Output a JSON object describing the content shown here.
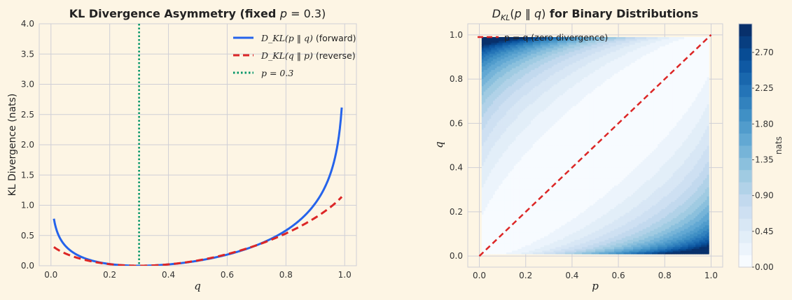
{
  "chart_data": [
    {
      "type": "line",
      "title": "KL Divergence Asymmetry (fixed p = 0.3)",
      "title_parts": {
        "prefix": "KL Divergence Asymmetry (fixed ",
        "var": "p",
        "suffix": " = 0.3)"
      },
      "xlabel": "q",
      "ylabel": "KL Divergence (nats)",
      "xlim": [
        -0.04,
        1.04
      ],
      "ylim": [
        0,
        4.0
      ],
      "xticks": [
        "0.0",
        "0.2",
        "0.4",
        "0.6",
        "0.8",
        "1.0"
      ],
      "yticks": [
        "0.0",
        "0.5",
        "1.0",
        "1.5",
        "2.0",
        "2.5",
        "3.0",
        "3.5",
        "4.0"
      ],
      "grid": true,
      "legend_position": "top-right",
      "p_fixed": 0.3,
      "q_range": [
        0.01,
        0.99
      ],
      "series": [
        {
          "name": "D_KL(p ‖ q) (forward)",
          "legend_math": "D_KL(p ‖ q)",
          "legend_note": " (forward)",
          "color": "#2563eb",
          "style": "solid",
          "kind": "forward"
        },
        {
          "name": "D_KL(q ‖ p) (reverse)",
          "legend_math": "D_KL(q ‖ p)",
          "legend_note": " (reverse)",
          "color": "#dc2626",
          "style": "dashed",
          "kind": "reverse"
        },
        {
          "name": "p = 0.3",
          "legend_math": "p = 0.3",
          "legend_note": "",
          "color": "#059669",
          "style": "dotted",
          "kind": "vline",
          "x": 0.3
        }
      ],
      "sample_points": {
        "q": [
          0.01,
          0.1,
          0.2,
          0.3,
          0.4,
          0.5,
          0.6,
          0.7,
          0.8,
          0.9,
          0.99
        ],
        "forward": [
          0.78,
          0.17,
          0.03,
          0.0,
          0.02,
          0.08,
          0.18,
          0.34,
          0.58,
          1.03,
          2.61
        ],
        "reverse": [
          0.31,
          0.12,
          0.03,
          0.0,
          0.02,
          0.09,
          0.19,
          0.34,
          0.52,
          0.78,
          1.14
        ]
      }
    },
    {
      "type": "heatmap",
      "title": "D_KL(p ‖ q) for Binary Distributions",
      "title_suffix": " for Binary Distributions",
      "xlabel": "p",
      "ylabel": "q",
      "xlim": [
        -0.05,
        1.05
      ],
      "ylim": [
        -0.05,
        1.05
      ],
      "xticks": [
        "0.0",
        "0.2",
        "0.4",
        "0.6",
        "0.8",
        "1.0"
      ],
      "yticks": [
        "0.0",
        "0.2",
        "0.4",
        "0.6",
        "0.8",
        "1.0"
      ],
      "grid": true,
      "domain": [
        0.01,
        0.99
      ],
      "colormap": "Blues",
      "levels": 20,
      "vmax": 3.06,
      "colorbar": {
        "label": "nats",
        "ticks": [
          "0.00",
          "0.45",
          "0.90",
          "1.35",
          "1.80",
          "2.25",
          "2.70"
        ]
      },
      "series": [
        {
          "name": "p = q (zero divergence)",
          "color": "#dc2626",
          "style": "dashed",
          "x": [
            0,
            1
          ],
          "y": [
            0,
            1
          ]
        }
      ]
    }
  ]
}
